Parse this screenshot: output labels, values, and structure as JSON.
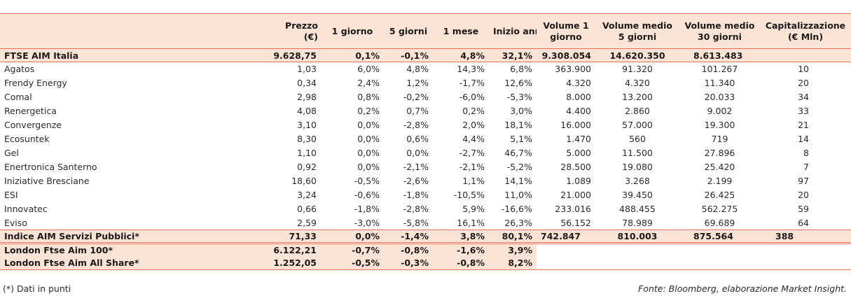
{
  "headers": [
    "",
    "Prezzo\n(€)",
    "1 giorno",
    "5 giorni",
    "1 mese",
    "Inizio anno",
    "Volume 1\ngiorno",
    "Volume medio\n5 giorni",
    "Volume medio\n30 giorni",
    "Capitalizzazione\n(€ Mln)"
  ],
  "header_lines": {
    "prezzo": [
      "Prezzo",
      "(€)"
    ],
    "g1": "1 giorno",
    "g5": "5 giorni",
    "m1": "1 mese",
    "ytd": "Inizio anno",
    "vol1": [
      "Volume 1",
      "giorno"
    ],
    "vol5": [
      "Volume medio",
      "5 giorni"
    ],
    "vol30": [
      "Volume medio",
      "30 giorni"
    ],
    "cap": [
      "Capitalizzazione",
      "(€ Mln)"
    ]
  },
  "ftse_aim": [
    "FTSE AIM Italia",
    "9.628,75",
    "0,1%",
    "-0,1%",
    "4,8%",
    "32,1%",
    "9.308.054",
    "14.620.350",
    "8.613.483",
    ""
  ],
  "rows": [
    [
      "Agatos",
      "1,03",
      "6,0%",
      "4,8%",
      "14,3%",
      "6,8%",
      "363.900",
      "91.320",
      "101.267",
      "10"
    ],
    [
      "Frendy Energy",
      "0,34",
      "2,4%",
      "1,2%",
      "-1,7%",
      "12,6%",
      "4.320",
      "4.320",
      "11.340",
      "20"
    ],
    [
      "Comal",
      "2,98",
      "0,8%",
      "-0,2%",
      "-6,0%",
      "-5,3%",
      "8.000",
      "13.200",
      "20.033",
      "34"
    ],
    [
      "Renergetica",
      "4,08",
      "0,2%",
      "0,7%",
      "0,2%",
      "3,0%",
      "4.400",
      "2.860",
      "9.002",
      "33"
    ],
    [
      "Convergenze",
      "3,10",
      "0,0%",
      "-2,8%",
      "2,0%",
      "18,1%",
      "16.000",
      "57.000",
      "19.300",
      "21"
    ],
    [
      "Ecosuntek",
      "8,30",
      "0,0%",
      "0,6%",
      "4,4%",
      "5,1%",
      "1.470",
      "560",
      "719",
      "14"
    ],
    [
      "Gel",
      "1,10",
      "0,0%",
      "0,0%",
      "-2,7%",
      "46,7%",
      "5.000",
      "11.500",
      "27.896",
      "8"
    ],
    [
      "Enertronica Santerno",
      "0,92",
      "0,0%",
      "-2,1%",
      "-2,1%",
      "-5,2%",
      "28.500",
      "19.080",
      "25.420",
      "7"
    ],
    [
      "Iniziative Bresciane",
      "18,60",
      "-0,5%",
      "-2,6%",
      "1,1%",
      "14,1%",
      "1.089",
      "3.268",
      "2.199",
      "97"
    ],
    [
      "ESI",
      "3,24",
      "-0,6%",
      "-1,8%",
      "-10,5%",
      "11,0%",
      "21.000",
      "39.450",
      "26.425",
      "20"
    ],
    [
      "Innovatec",
      "0,66",
      "-1,8%",
      "-2,8%",
      "5,9%",
      "-16,6%",
      "233.016",
      "488.455",
      "562.275",
      "59"
    ],
    [
      "Eviso",
      "2,59",
      "-3,0%",
      "-5,8%",
      "16,1%",
      "26,3%",
      "56.152",
      "78.989",
      "69.689",
      "64"
    ]
  ],
  "indice": [
    "Indice AIM Servizi Pubblici*",
    "71,33",
    "0,0%",
    "-1,4%",
    "3,8%",
    "80,1%",
    "742.847",
    "810.003",
    "875.564",
    "388"
  ],
  "london": [
    [
      "London Ftse Aim 100*",
      "6.122,21",
      "-0,7%",
      "-0,8%",
      "-1,6%",
      "3,9%"
    ],
    [
      "London Ftse Aim All Share*",
      "1.252,05",
      "-0,5%",
      "-0,3%",
      "-0,8%",
      "8,2%"
    ]
  ],
  "footnote": "(*) Dati in punti",
  "source": "Fonte: Bloomberg, elaborazione Market Insight.",
  "colors": {
    "accent_line": "#e2735a",
    "band_bg": "#fbe4d5"
  }
}
